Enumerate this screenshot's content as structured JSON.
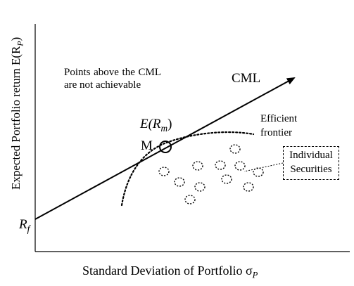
{
  "diagram": {
    "y_axis_label": "Expected Portfolio return E(R",
    "y_axis_sub": "P",
    "y_axis_close": ")",
    "x_axis_label": "Standard Deviation of Portfolio σ",
    "x_axis_sub": "P",
    "note": "Points above the CML are not achievable",
    "cml_label": "CML",
    "frontier_label": "Efficient frontier",
    "market_return_label": "E(R",
    "market_return_sub": "m",
    "market_return_close": ")",
    "market_point_label": "M",
    "risk_free_label": "R",
    "risk_free_sub": "f",
    "securities_label": "Individual Securities"
  }
}
